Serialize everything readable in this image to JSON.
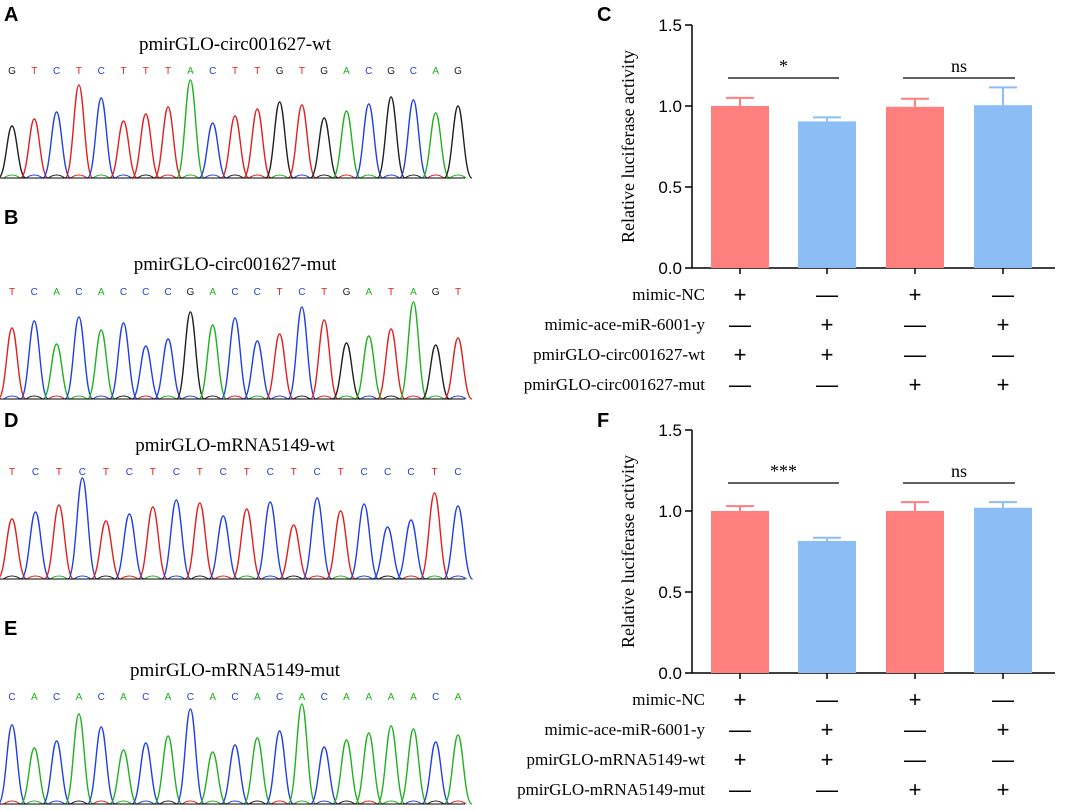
{
  "traces": [
    {
      "letter": "A",
      "title": "pmirGLO-circ001627-wt",
      "sequence": "GTCTCTTTACTTGTGACGCAG"
    },
    {
      "letter": "B",
      "title": "pmirGLO-circ001627-mut",
      "sequence": "TCACACCCGACCTCTGATAGT"
    },
    {
      "letter": "D",
      "title": "pmirGLO-mRNA5149-wt",
      "sequence": "TCTCTCTCTCTCTCTCCCTC"
    },
    {
      "letter": "E",
      "title": "pmirGLO-mRNA5149-mut",
      "sequence": "CACACACACACACACAAAACA"
    }
  ],
  "base_colors": {
    "A": "#20b020",
    "C": "#2040e0",
    "G": "#202020",
    "T": "#e02020"
  },
  "chart_data": [
    {
      "letter": "C",
      "type": "bar",
      "ylabel": "Relative luciferase activity",
      "ylim": [
        0,
        1.5
      ],
      "yticks": [
        "0.0",
        "0.5",
        "1.0",
        "1.5"
      ],
      "values": [
        1.0,
        0.905,
        0.995,
        1.005
      ],
      "errors": [
        0.05,
        0.025,
        0.05,
        0.11
      ],
      "bar_colors": [
        "#ff7f7f",
        "#8dbdf5",
        "#ff7f7f",
        "#8dbdf5"
      ],
      "significance": [
        {
          "label": "*",
          "from": 0,
          "to": 1
        },
        {
          "label": "ns",
          "from": 2,
          "to": 3
        }
      ],
      "conditions": [
        {
          "label": "mimic-NC",
          "marks": [
            "+",
            "—",
            "+",
            "—"
          ]
        },
        {
          "label": "mimic-ace-miR-6001-y",
          "marks": [
            "—",
            "+",
            "—",
            "+"
          ]
        },
        {
          "label": "pmirGLO-circ001627-wt",
          "marks": [
            "+",
            "+",
            "—",
            "—"
          ]
        },
        {
          "label": "pmirGLO-circ001627-mut",
          "marks": [
            "—",
            "—",
            "+",
            "+"
          ]
        }
      ]
    },
    {
      "letter": "F",
      "type": "bar",
      "ylabel": "Relative luciferase activity",
      "ylim": [
        0,
        1.5
      ],
      "yticks": [
        "0.0",
        "0.5",
        "1.0",
        "1.5"
      ],
      "values": [
        1.0,
        0.815,
        1.0,
        1.02
      ],
      "errors": [
        0.03,
        0.02,
        0.055,
        0.035
      ],
      "bar_colors": [
        "#ff7f7f",
        "#8dbdf5",
        "#ff7f7f",
        "#8dbdf5"
      ],
      "significance": [
        {
          "label": "***",
          "from": 0,
          "to": 1
        },
        {
          "label": "ns",
          "from": 2,
          "to": 3
        }
      ],
      "conditions": [
        {
          "label": "mimic-NC",
          "marks": [
            "+",
            "—",
            "+",
            "—"
          ]
        },
        {
          "label": "mimic-ace-miR-6001-y",
          "marks": [
            "—",
            "+",
            "—",
            "+"
          ]
        },
        {
          "label": "pmirGLO-mRNA5149-wt",
          "marks": [
            "+",
            "+",
            "—",
            "—"
          ]
        },
        {
          "label": "pmirGLO-mRNA5149-mut",
          "marks": [
            "—",
            "—",
            "+",
            "+"
          ]
        }
      ]
    }
  ]
}
